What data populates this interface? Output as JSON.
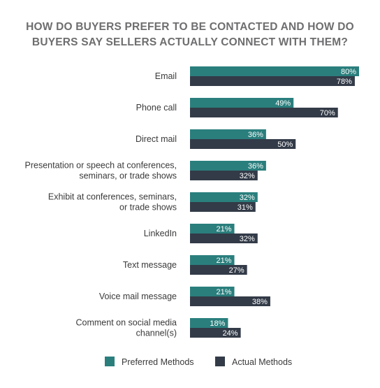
{
  "chart_data": {
    "type": "bar",
    "orientation": "horizontal",
    "title": [
      "HOW DO BUYERS PREFER TO BE CONTACTED AND HOW DO",
      "BUYERS SAY SELLERS ACTUALLY CONNECT WITH THEM?"
    ],
    "categories": [
      [
        "Email"
      ],
      [
        "Phone call"
      ],
      [
        "Direct mail"
      ],
      [
        "Presentation or speech at conferences,",
        "seminars, or trade shows"
      ],
      [
        "Exhibit at conferences, seminars,",
        "or trade shows"
      ],
      [
        "LinkedIn"
      ],
      [
        "Text message"
      ],
      [
        "Voice mail message"
      ],
      [
        "Comment on social media",
        "channel(s)"
      ]
    ],
    "series": [
      {
        "name": "Preferred Methods",
        "color": "#2a7f7d",
        "values": [
          80,
          49,
          36,
          36,
          32,
          21,
          21,
          21,
          18
        ]
      },
      {
        "name": "Actual Methods",
        "color": "#333b48",
        "values": [
          78,
          70,
          50,
          32,
          31,
          32,
          27,
          38,
          24
        ]
      }
    ],
    "value_suffix": "%",
    "xlim": [
      0,
      80
    ],
    "legend_position": "bottom",
    "grid": false
  }
}
